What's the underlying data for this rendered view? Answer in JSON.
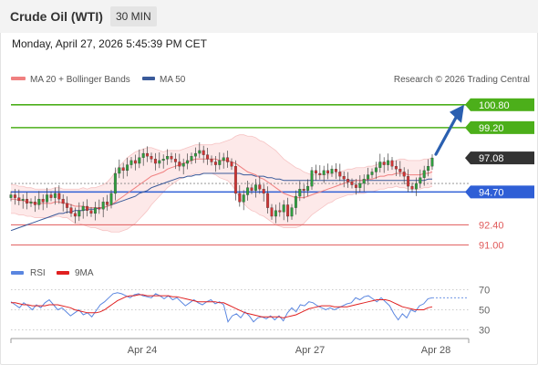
{
  "header": {
    "title": "Crude Oil (WTI)",
    "timeframe": "30 MIN"
  },
  "datetime": "Monday, April 27, 2026 5:45:39 PM CET",
  "legend": {
    "ma20": "MA 20 + Bollinger Bands",
    "ma50": "MA 50",
    "credit": "Research © 2026 Trading Central"
  },
  "colors": {
    "green": "#4caf1a",
    "blue": "#2f5fd6",
    "red": "#e05a5a",
    "candle_up": "#2e9e3e",
    "candle_down": "#d13333",
    "band_fill": "#fde3e3",
    "arrow": "#2a5fb0",
    "ma20": "#f08080",
    "ma50": "#3a5a9a",
    "rsi": "#5a86e0",
    "rsi_ma": "#e02020"
  },
  "chart_data": [
    {
      "type": "candlestick",
      "title": "Crude Oil (WTI)",
      "timeframe": "30 MIN",
      "x_tick_labels": [
        "Apr 24",
        "Apr 27",
        "Apr 28"
      ],
      "levels": [
        {
          "value": 100.8,
          "label": "100.80",
          "kind": "resistance",
          "color": "#4caf1a"
        },
        {
          "value": 99.2,
          "label": "99.20",
          "kind": "resistance",
          "color": "#4caf1a"
        },
        {
          "value": 97.08,
          "label": "97.08",
          "kind": "last-price",
          "color": "#333333"
        },
        {
          "value": 94.7,
          "label": "94.70",
          "kind": "pivot",
          "color": "#2f5fd6"
        },
        {
          "value": 92.4,
          "label": "92.40",
          "kind": "support",
          "color": "#e05a5a"
        },
        {
          "value": 91.0,
          "label": "91.00",
          "kind": "support",
          "color": "#e05a5a"
        }
      ],
      "ylim": [
        90.0,
        102.0
      ],
      "close_series": [
        94.5,
        94.3,
        94.1,
        94.2,
        93.9,
        94.0,
        93.8,
        94.2,
        94.0,
        94.5,
        94.3,
        94.6,
        94.2,
        93.9,
        93.6,
        93.2,
        93.0,
        93.4,
        93.7,
        93.4,
        93.2,
        93.6,
        93.5,
        94.0,
        93.8,
        94.6,
        96.0,
        96.4,
        96.2,
        96.6,
        96.9,
        96.7,
        97.1,
        97.4,
        97.2,
        97.0,
        96.7,
        96.9,
        97.0,
        97.2,
        97.0,
        96.8,
        96.5,
        96.7,
        96.9,
        97.2,
        97.4,
        97.6,
        97.3,
        97.0,
        96.8,
        96.6,
        96.9,
        97.1,
        96.8,
        96.5,
        94.6,
        94.0,
        94.5,
        95.0,
        94.8,
        95.2,
        94.9,
        94.6,
        93.6,
        93.0,
        93.4,
        93.3,
        93.8,
        93.0,
        93.6,
        94.4,
        94.9,
        94.8,
        95.1,
        96.2,
        96.0,
        95.9,
        96.2,
        96.0,
        96.3,
        96.1,
        95.8,
        95.6,
        95.4,
        95.2,
        95.0,
        95.3,
        95.6,
        95.9,
        96.1,
        96.4,
        96.8,
        96.6,
        96.9,
        96.5,
        96.3,
        96.1,
        95.8,
        95.1,
        94.9,
        95.3,
        95.7,
        96.2,
        96.5,
        97.08
      ],
      "ma20_series": [
        94.2,
        94.2,
        94.1,
        94.1,
        94.0,
        94.0,
        93.9,
        93.9,
        93.9,
        93.9,
        93.9,
        94.0,
        94.0,
        93.9,
        93.9,
        93.8,
        93.7,
        93.7,
        93.7,
        93.6,
        93.6,
        93.6,
        93.6,
        93.6,
        93.7,
        93.8,
        94.0,
        94.2,
        94.4,
        94.6,
        94.8,
        95.0,
        95.2,
        95.4,
        95.6,
        95.8,
        95.9,
        96.0,
        96.1,
        96.3,
        96.4,
        96.5,
        96.6,
        96.7,
        96.8,
        96.9,
        97.0,
        97.0,
        97.0,
        97.0,
        97.0,
        97.0,
        96.9,
        96.9,
        96.9,
        96.8,
        96.7,
        96.5,
        96.3,
        96.1,
        96.0,
        95.9,
        95.7,
        95.6,
        95.4,
        95.2,
        95.0,
        94.8,
        94.6,
        94.5,
        94.4,
        94.3,
        94.3,
        94.3,
        94.4,
        94.5,
        94.6,
        94.7,
        94.8,
        94.9,
        95.0,
        95.1,
        95.2,
        95.3,
        95.4,
        95.4,
        95.5,
        95.5,
        95.5,
        95.6,
        95.6,
        95.7,
        95.8,
        95.8,
        95.9,
        95.9,
        96.0,
        96.0,
        96.0,
        95.9,
        95.9,
        95.9,
        95.9,
        96.0,
        96.0,
        96.1
      ],
      "ma50_series": [
        92.0,
        92.1,
        92.2,
        92.3,
        92.4,
        92.5,
        92.6,
        92.7,
        92.8,
        92.9,
        93.0,
        93.1,
        93.2,
        93.2,
        93.3,
        93.3,
        93.4,
        93.4,
        93.4,
        93.5,
        93.5,
        93.5,
        93.6,
        93.6,
        93.7,
        93.8,
        93.9,
        94.0,
        94.1,
        94.2,
        94.3,
        94.4,
        94.6,
        94.7,
        94.8,
        95.0,
        95.1,
        95.2,
        95.3,
        95.4,
        95.5,
        95.6,
        95.7,
        95.7,
        95.8,
        95.8,
        95.9,
        95.9,
        96.0,
        96.0,
        96.0,
        96.0,
        96.0,
        96.0,
        96.0,
        96.0,
        96.0,
        96.0,
        95.9,
        95.9,
        95.9,
        95.8,
        95.8,
        95.8,
        95.7,
        95.7,
        95.6,
        95.6,
        95.5,
        95.5,
        95.5,
        95.5,
        95.5,
        95.5,
        95.5,
        95.5,
        95.5,
        95.5,
        95.5,
        95.5,
        95.5,
        95.5,
        95.5,
        95.5,
        95.5,
        95.5,
        95.5,
        95.5,
        95.5,
        95.5,
        95.5,
        95.5,
        95.5,
        95.5,
        95.5,
        95.5,
        95.5,
        95.5,
        95.5,
        95.5,
        95.5,
        95.5,
        95.5,
        95.5,
        95.6,
        95.6
      ],
      "band_width_series": [
        1.0,
        1.0,
        1.0,
        1.0,
        1.0,
        1.0,
        1.0,
        1.0,
        1.0,
        1.0,
        1.0,
        1.0,
        1.0,
        1.0,
        1.0,
        1.1,
        1.2,
        1.2,
        1.3,
        1.3,
        1.4,
        1.4,
        1.5,
        1.6,
        1.7,
        1.9,
        2.1,
        2.3,
        2.4,
        2.5,
        2.5,
        2.5,
        2.4,
        2.3,
        2.2,
        2.0,
        1.8,
        1.6,
        1.4,
        1.3,
        1.2,
        1.1,
        1.0,
        1.0,
        1.0,
        1.0,
        1.0,
        1.0,
        1.0,
        1.0,
        1.0,
        1.1,
        1.2,
        1.3,
        1.4,
        1.6,
        1.9,
        2.2,
        2.4,
        2.5,
        2.6,
        2.6,
        2.6,
        2.6,
        2.6,
        2.6,
        2.6,
        2.5,
        2.4,
        2.3,
        2.2,
        2.1,
        2.0,
        1.8,
        1.6,
        1.4,
        1.3,
        1.2,
        1.1,
        1.0,
        1.0,
        0.9,
        0.9,
        0.9,
        0.9,
        0.9,
        0.9,
        0.9,
        0.9,
        0.9,
        0.9,
        0.9,
        0.9,
        0.9,
        0.9,
        0.9,
        0.9,
        1.0,
        1.0,
        1.0,
        1.0,
        1.0,
        1.0,
        1.0,
        1.0,
        1.0
      ],
      "forecast": {
        "from": 97.08,
        "to": 100.8
      }
    },
    {
      "type": "line",
      "title": "RSI",
      "series": [
        {
          "name": "RSI",
          "values": [
            58,
            55,
            52,
            57,
            54,
            50,
            55,
            52,
            57,
            60,
            55,
            50,
            52,
            48,
            44,
            47,
            50,
            45,
            47,
            43,
            49,
            55,
            58,
            62,
            66,
            67,
            66,
            64,
            62,
            65,
            66,
            64,
            63,
            62,
            66,
            64,
            61,
            64,
            60,
            62,
            58,
            54,
            57,
            60,
            57,
            55,
            58,
            60,
            56,
            58,
            55,
            38,
            44,
            46,
            42,
            48,
            44,
            38,
            42,
            43,
            41,
            44,
            40,
            44,
            39,
            47,
            52,
            48,
            55,
            54,
            58,
            57,
            54,
            52,
            50,
            52,
            50,
            52,
            54,
            56,
            57,
            62,
            60,
            63,
            64,
            61,
            58,
            62,
            58,
            54,
            46,
            40,
            46,
            42,
            50,
            48,
            54,
            56,
            61,
            62
          ]
        },
        {
          "name": "9MA",
          "values": [
            57,
            57,
            56,
            55,
            55,
            54,
            54,
            54,
            54,
            55,
            55,
            55,
            54,
            53,
            52,
            50,
            49,
            48,
            47,
            47,
            47,
            48,
            50,
            53,
            56,
            59,
            61,
            63,
            64,
            64,
            65,
            65,
            64,
            64,
            64,
            64,
            64,
            64,
            63,
            63,
            62,
            61,
            60,
            59,
            58,
            58,
            58,
            58,
            58,
            57,
            57,
            55,
            53,
            51,
            49,
            47,
            46,
            45,
            44,
            43,
            43,
            43,
            43,
            43,
            42,
            43,
            44,
            45,
            47,
            49,
            51,
            52,
            53,
            54,
            54,
            54,
            53,
            53,
            53,
            53,
            54,
            55,
            56,
            57,
            58,
            59,
            60,
            60,
            60,
            59,
            57,
            55,
            53,
            52,
            51,
            50,
            50,
            50,
            52,
            53
          ]
        }
      ],
      "y_ticks": [
        30,
        50,
        70
      ],
      "ylim": [
        25,
        75
      ]
    }
  ]
}
